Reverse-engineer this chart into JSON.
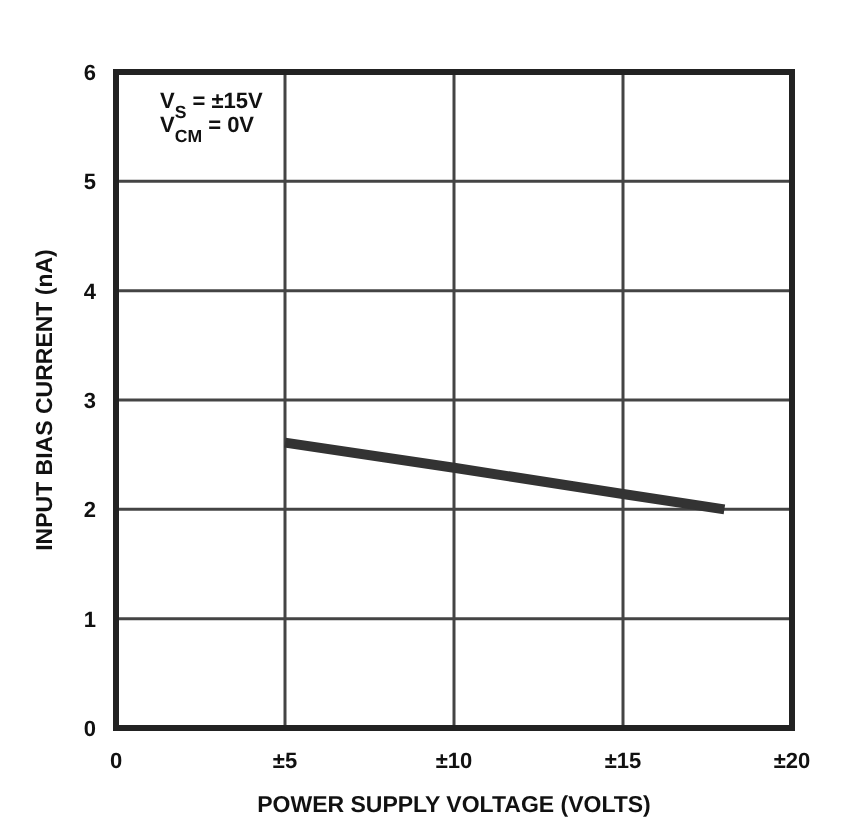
{
  "chart_data": {
    "type": "line",
    "xlabel": "POWER SUPPLY VOLTAGE (VOLTS)",
    "ylabel": "INPUT BIAS CURRENT (nA)",
    "annotations": [
      "V$_{S}$ = ±15V",
      "V$_{CM}$ = 0V"
    ],
    "x": [
      5,
      10,
      15,
      18
    ],
    "series": [
      {
        "color": "#333333",
        "values": [
          2.61,
          2.38,
          2.14,
          2.0
        ]
      }
    ],
    "xlim": [
      0,
      20
    ],
    "xticks": [
      0,
      {
        "value": 5,
        "label": "±5"
      },
      {
        "value": 10,
        "label": "±10"
      },
      {
        "value": 15,
        "label": "±15"
      },
      {
        "value": 20,
        "label": "±20"
      }
    ],
    "ylim": [
      0,
      6
    ],
    "yticks": [
      0,
      1,
      2,
      3,
      4,
      5,
      6
    ],
    "grid": true,
    "marker": "none",
    "line_style": "solid"
  }
}
